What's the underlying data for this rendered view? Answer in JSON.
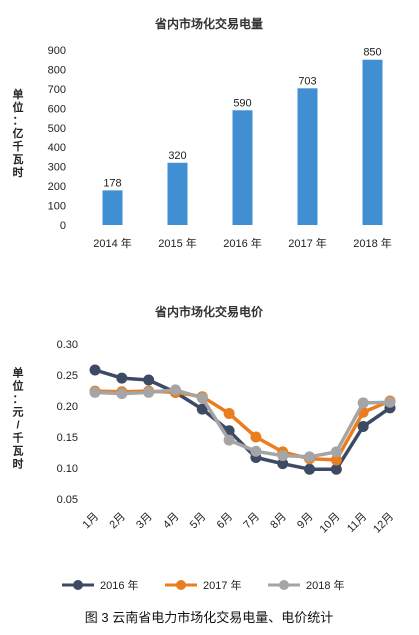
{
  "chart_data": [
    {
      "type": "bar",
      "title": "省内市场化交易电量",
      "ylabel": "单位：亿千瓦时",
      "categories": [
        "2014 年",
        "2015 年",
        "2016 年",
        "2017 年",
        "2018 年"
      ],
      "values": [
        178,
        320,
        590,
        703,
        850
      ],
      "data_labels": [
        "178",
        "320",
        "590",
        "703",
        "850"
      ],
      "ylim": [
        0,
        900
      ],
      "yticks": [
        0,
        100,
        200,
        300,
        400,
        500,
        600,
        700,
        800,
        900
      ],
      "ytick_labels": [
        "0",
        "100",
        "200",
        "300",
        "400",
        "500",
        "600",
        "700",
        "800",
        "900"
      ],
      "grid": false,
      "colors": {
        "bar": "#3f8fd2"
      }
    },
    {
      "type": "line",
      "title": "省内市场化交易电价",
      "ylabel": "单位：元/千瓦时",
      "categories": [
        "1月",
        "2月",
        "3月",
        "4月",
        "5月",
        "6月",
        "7月",
        "8月",
        "9月",
        "10月",
        "11月",
        "12月"
      ],
      "ylim": [
        0.05,
        0.3
      ],
      "yticks": [
        0.05,
        0.1,
        0.15,
        0.2,
        0.25,
        0.3
      ],
      "ytick_labels": [
        "0.05",
        "0.10",
        "0.15",
        "0.20",
        "0.25",
        "0.30"
      ],
      "grid": false,
      "legend_position": "bottom",
      "series": [
        {
          "name": "2016 年",
          "color": "#3d4a63",
          "values": [
            0.258,
            0.245,
            0.242,
            0.222,
            0.195,
            0.16,
            0.117,
            0.107,
            0.098,
            0.098,
            0.167,
            0.197
          ]
        },
        {
          "name": "2017 年",
          "color": "#ea7d1e",
          "values": [
            0.224,
            0.223,
            0.224,
            0.222,
            0.215,
            0.188,
            0.15,
            0.126,
            0.115,
            0.113,
            0.19,
            0.208
          ]
        },
        {
          "name": "2018 年",
          "color": "#a5a5a5",
          "values": [
            0.222,
            0.22,
            0.222,
            0.226,
            0.213,
            0.145,
            0.127,
            0.12,
            0.118,
            0.126,
            0.205,
            0.206
          ]
        }
      ]
    }
  ],
  "caption": "图 3   云南省电力市场化交易电量、电价统计"
}
